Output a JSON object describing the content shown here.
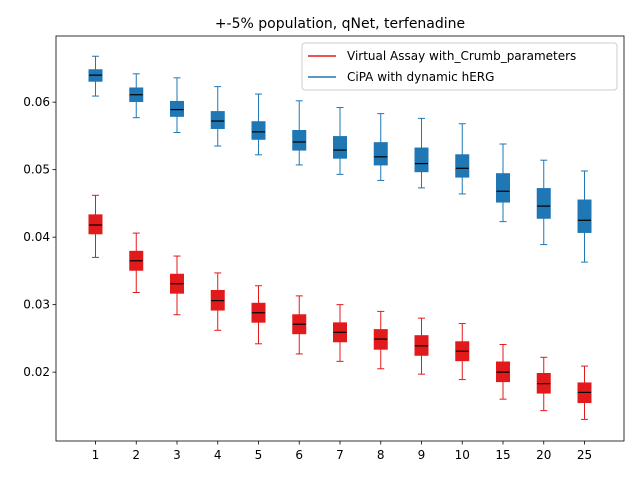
{
  "chart_data": {
    "type": "box",
    "title": "+-5% population, qNet, terfenadine",
    "xlabel": "",
    "ylabel": "",
    "categories": [
      "1",
      "2",
      "3",
      "4",
      "5",
      "6",
      "7",
      "8",
      "9",
      "10",
      "15",
      "20",
      "25"
    ],
    "ylim": [
      0.0098,
      0.0698
    ],
    "yticks": [
      "0.02",
      "0.03",
      "0.04",
      "0.05",
      "0.06"
    ],
    "grid": false,
    "legend_position": "top-right",
    "series": [
      {
        "name": "Virtual Assay with_Crumb_parameters",
        "color": "#e31a1c",
        "median_color": "#000000",
        "boxes": [
          {
            "whislo": 0.037,
            "q1": 0.0405,
            "med": 0.0418,
            "q3": 0.0433,
            "whishi": 0.0462
          },
          {
            "whislo": 0.0318,
            "q1": 0.0351,
            "med": 0.0365,
            "q3": 0.0379,
            "whishi": 0.0406
          },
          {
            "whislo": 0.0285,
            "q1": 0.0317,
            "med": 0.0331,
            "q3": 0.0345,
            "whishi": 0.0372
          },
          {
            "whislo": 0.0262,
            "q1": 0.0292,
            "med": 0.0306,
            "q3": 0.0321,
            "whishi": 0.0347
          },
          {
            "whislo": 0.0242,
            "q1": 0.0274,
            "med": 0.0288,
            "q3": 0.0302,
            "whishi": 0.0328
          },
          {
            "whislo": 0.0227,
            "q1": 0.0257,
            "med": 0.0271,
            "q3": 0.0285,
            "whishi": 0.0313
          },
          {
            "whislo": 0.0216,
            "q1": 0.0245,
            "med": 0.0259,
            "q3": 0.0273,
            "whishi": 0.03
          },
          {
            "whislo": 0.0205,
            "q1": 0.0234,
            "med": 0.0249,
            "q3": 0.0263,
            "whishi": 0.029
          },
          {
            "whislo": 0.0197,
            "q1": 0.0225,
            "med": 0.0239,
            "q3": 0.0254,
            "whishi": 0.028
          },
          {
            "whislo": 0.0189,
            "q1": 0.0217,
            "med": 0.0231,
            "q3": 0.0245,
            "whishi": 0.0272
          },
          {
            "whislo": 0.016,
            "q1": 0.0186,
            "med": 0.02,
            "q3": 0.0215,
            "whishi": 0.0241
          },
          {
            "whislo": 0.0143,
            "q1": 0.0169,
            "med": 0.0183,
            "q3": 0.0198,
            "whishi": 0.0222
          },
          {
            "whislo": 0.013,
            "q1": 0.0155,
            "med": 0.017,
            "q3": 0.0184,
            "whishi": 0.0209
          }
        ]
      },
      {
        "name": "CiPA with dynamic hERG",
        "color": "#1f77b4",
        "median_color": "#000000",
        "boxes": [
          {
            "whislo": 0.0609,
            "q1": 0.0631,
            "med": 0.064,
            "q3": 0.0648,
            "whishi": 0.0668
          },
          {
            "whislo": 0.0577,
            "q1": 0.0601,
            "med": 0.0611,
            "q3": 0.0621,
            "whishi": 0.0642
          },
          {
            "whislo": 0.0555,
            "q1": 0.0579,
            "med": 0.0589,
            "q3": 0.0601,
            "whishi": 0.0636
          },
          {
            "whislo": 0.0535,
            "q1": 0.0561,
            "med": 0.0572,
            "q3": 0.0586,
            "whishi": 0.0623
          },
          {
            "whislo": 0.0522,
            "q1": 0.0545,
            "med": 0.0556,
            "q3": 0.0571,
            "whishi": 0.0612
          },
          {
            "whislo": 0.0507,
            "q1": 0.0529,
            "med": 0.0541,
            "q3": 0.0558,
            "whishi": 0.0602
          },
          {
            "whislo": 0.0493,
            "q1": 0.0517,
            "med": 0.0529,
            "q3": 0.0549,
            "whishi": 0.0592
          },
          {
            "whislo": 0.0484,
            "q1": 0.0507,
            "med": 0.0519,
            "q3": 0.054,
            "whishi": 0.0583
          },
          {
            "whislo": 0.0473,
            "q1": 0.0497,
            "med": 0.0509,
            "q3": 0.0532,
            "whishi": 0.0576
          },
          {
            "whislo": 0.0464,
            "q1": 0.0489,
            "med": 0.0502,
            "q3": 0.0522,
            "whishi": 0.0568
          },
          {
            "whislo": 0.0423,
            "q1": 0.0452,
            "med": 0.0468,
            "q3": 0.0494,
            "whishi": 0.0538
          },
          {
            "whislo": 0.0389,
            "q1": 0.0428,
            "med": 0.0446,
            "q3": 0.0472,
            "whishi": 0.0514
          },
          {
            "whislo": 0.0363,
            "q1": 0.0407,
            "med": 0.0425,
            "q3": 0.0455,
            "whishi": 0.0498
          }
        ]
      }
    ]
  }
}
